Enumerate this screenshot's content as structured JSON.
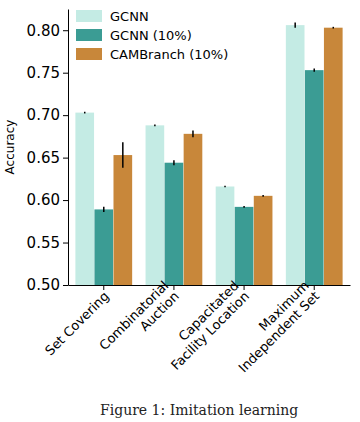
{
  "chart_data": {
    "type": "bar",
    "y_label": "Accuracy",
    "categories": [
      "Set Covering",
      "Combinatorial\nAuction",
      "Capacitated\nFacility Location",
      "Maximum\nIndependent Set"
    ],
    "series": [
      {
        "name": "GCNN",
        "color": "#c4ebe4",
        "values": [
          0.703,
          0.688,
          0.616,
          0.806
        ],
        "errors": [
          0.001,
          0.001,
          0.001,
          0.003
        ]
      },
      {
        "name": "GCNN (10%)",
        "color": "#3b9c94",
        "values": [
          0.589,
          0.644,
          0.592,
          0.753
        ],
        "errors": [
          0.003,
          0.003,
          0.001,
          0.002
        ]
      },
      {
        "name": "CAMBranch (10%)",
        "color": "#c8873a",
        "values": [
          0.653,
          0.678,
          0.605,
          0.803
        ],
        "errors": [
          0.015,
          0.004,
          0.001,
          0.001
        ]
      }
    ],
    "ylim": [
      0.5,
      0.825
    ],
    "yticks": [
      {
        "value": 0.5,
        "label": "0.50"
      },
      0.55,
      {
        "value": 0.6,
        "label": "0.60"
      },
      0.65,
      {
        "value": 0.7,
        "label": "0.70"
      },
      0.75,
      {
        "value": 0.8,
        "label": "0.80"
      }
    ],
    "grid": false,
    "legend": "top-left",
    "annotations": [
      "Figure 1: Imitation learning"
    ]
  }
}
